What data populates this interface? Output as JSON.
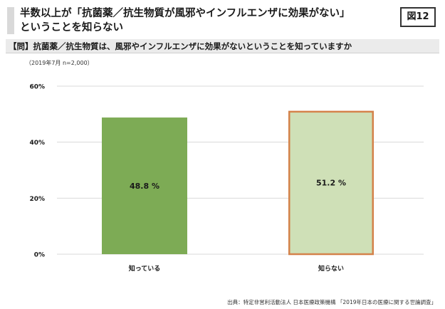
{
  "header": {
    "title_line1": "半数以上が「抗菌薬／抗生物質が風邪やインフルエンザに効果がない」",
    "title_line2": "ということを知らない",
    "figure_label": "図12"
  },
  "question": "【問】抗菌薬／抗生物質は、風邪やインフルエンザに効果がないということを知っていますか",
  "survey_note": "（2019年7月 n=2,000）",
  "source": "出典：特定非営利活動法人 日本医療政策機構 「2019年日本の医療に関する世論調査」",
  "chart_data": {
    "type": "bar",
    "categories": [
      "知っている",
      "知らない"
    ],
    "values": [
      48.8,
      51.2
    ],
    "value_labels": [
      "48.8 %",
      "51.2 %"
    ],
    "yticks": [
      "0%",
      "20%",
      "40%",
      "60%"
    ],
    "ylim": [
      0,
      60
    ],
    "grid": true,
    "colors": {
      "bar1_fill": "#7dab55",
      "bar2_fill": "#cfe0b7",
      "bar2_border": "#d4824a",
      "grid": "#d9d9d9"
    }
  }
}
